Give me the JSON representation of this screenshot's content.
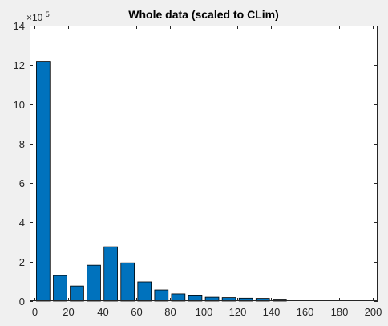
{
  "chart_data": {
    "type": "bar",
    "title": "Whole data (scaled to CLim)",
    "xlabel": "",
    "ylabel": "",
    "x": [
      5,
      15,
      25,
      35,
      45,
      55,
      65,
      75,
      85,
      95,
      105,
      115,
      125,
      135,
      145
    ],
    "values": [
      1218000,
      130000,
      77000,
      183000,
      277000,
      195000,
      98000,
      57000,
      37000,
      27000,
      20000,
      18000,
      15000,
      14000,
      10000
    ],
    "xlim": [
      -3,
      203
    ],
    "ylim": [
      0,
      1400000
    ],
    "bar_width": 8,
    "xticks": [
      0,
      20,
      40,
      60,
      80,
      100,
      120,
      140,
      160,
      180,
      200
    ],
    "xtick_labels": [
      "0",
      "20",
      "40",
      "60",
      "80",
      "100",
      "120",
      "140",
      "160",
      "180",
      "200"
    ],
    "yticks": [
      0,
      200000,
      400000,
      600000,
      800000,
      1000000,
      1200000,
      1400000
    ],
    "ytick_labels": [
      "0",
      "2",
      "4",
      "6",
      "8",
      "10",
      "12",
      "14"
    ],
    "y_exponent_label": "×10",
    "y_exponent_power": "5",
    "grid": false,
    "legend": "none",
    "colors": {
      "bar_fill": "#0072bd",
      "bar_edge": "#000000",
      "axes_bg": "#ffffff",
      "figure_bg": "#f0f0f0",
      "axis_line": "#262626"
    }
  }
}
